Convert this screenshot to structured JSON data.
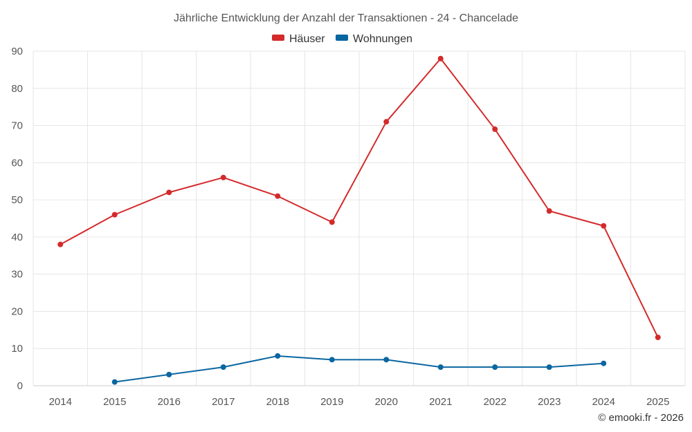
{
  "chart_data": {
    "type": "line",
    "title": "Jährliche Entwicklung der Anzahl der Transaktionen - 24 - Chancelade",
    "categories": [
      "2014",
      "2015",
      "2016",
      "2017",
      "2018",
      "2019",
      "2020",
      "2021",
      "2022",
      "2023",
      "2024",
      "2025"
    ],
    "y_ticks": [
      "0",
      "10",
      "20",
      "30",
      "40",
      "50",
      "60",
      "70",
      "80",
      "90"
    ],
    "ylim": [
      0,
      90
    ],
    "grid": true,
    "legend_position": "top-center",
    "series": [
      {
        "name": "Häuser",
        "color": "#d42a2a",
        "values": [
          38,
          46,
          52,
          56,
          51,
          44,
          71,
          88,
          69,
          47,
          43,
          13
        ]
      },
      {
        "name": "Wohnungen",
        "color": "#0a66a0",
        "values": [
          null,
          1,
          3,
          5,
          8,
          7,
          7,
          5,
          5,
          5,
          6,
          null
        ]
      }
    ],
    "credit": "© emooki.fr - 2026"
  }
}
